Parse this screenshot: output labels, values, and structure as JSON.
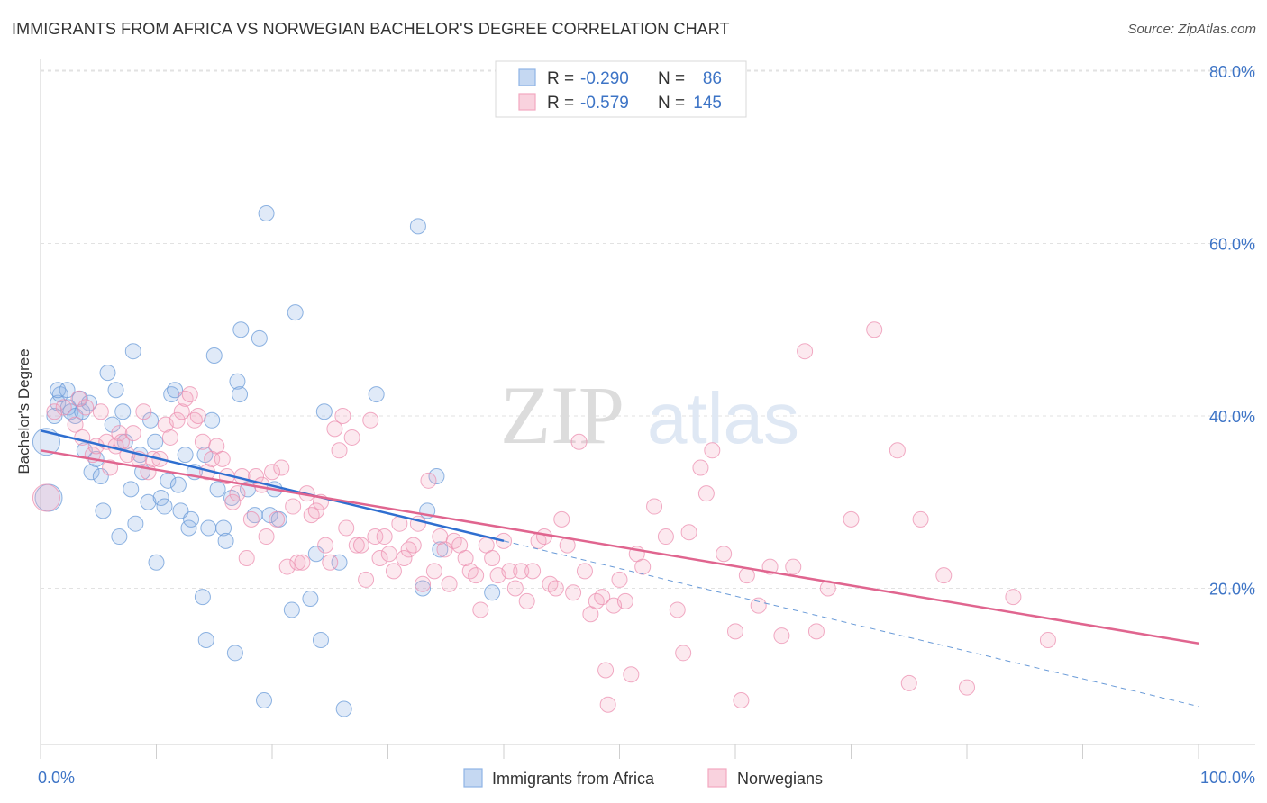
{
  "title": "IMMIGRANTS FROM AFRICA VS NORWEGIAN BACHELOR'S DEGREE CORRELATION CHART",
  "source": "Source: ZipAtlas.com",
  "watermark": {
    "zip": "ZIP",
    "atlas": "atlas"
  },
  "legend_box": [
    {
      "r_label": "R =",
      "r_value": "-0.290",
      "n_label": "N =",
      "n_value": "86",
      "color": "#8fb4e6"
    },
    {
      "r_label": "R =",
      "r_value": "-0.579",
      "n_label": "N =",
      "n_value": "145",
      "color": "#f2a8c0"
    }
  ],
  "chart_data": {
    "type": "scatter",
    "title": "IMMIGRANTS FROM AFRICA VS NORWEGIAN BACHELOR'S DEGREE CORRELATION CHART",
    "xlabel": "",
    "ylabel": "Bachelor's Degree",
    "xlim": [
      0,
      100
    ],
    "ylim": [
      0,
      80
    ],
    "x_tick_labels": [
      "0.0%",
      "100.0%"
    ],
    "y_ticks": [
      20,
      40,
      60,
      80
    ],
    "y_tick_labels": [
      "20.0%",
      "40.0%",
      "60.0%",
      "80.0%"
    ],
    "grid": true,
    "legend_position": "bottom",
    "series": [
      {
        "name": "Immigrants from Africa",
        "color": "#6a9bd8",
        "r": -0.29,
        "n": 86,
        "trend": {
          "x0": 0,
          "y0": 38.3,
          "x1": 40,
          "y1": 25.5,
          "dash_to_x": 100,
          "dash_to_y": 6.3
        },
        "points": [
          [
            0.5,
            37
          ],
          [
            0.7,
            30.5
          ],
          [
            1.2,
            40
          ],
          [
            1.5,
            41.5
          ],
          [
            1.7,
            42.5
          ],
          [
            1.5,
            43
          ],
          [
            2.4,
            41
          ],
          [
            2.6,
            40.5
          ],
          [
            2.3,
            43
          ],
          [
            3.0,
            40
          ],
          [
            3.4,
            42
          ],
          [
            3.6,
            40.5
          ],
          [
            3.8,
            36
          ],
          [
            4.2,
            41.5
          ],
          [
            4.4,
            33.5
          ],
          [
            4.8,
            35
          ],
          [
            5.2,
            33
          ],
          [
            5.4,
            29
          ],
          [
            5.8,
            45
          ],
          [
            6.2,
            39
          ],
          [
            6.5,
            43
          ],
          [
            6.8,
            26
          ],
          [
            7.1,
            40.5
          ],
          [
            7.3,
            37
          ],
          [
            7.8,
            31.5
          ],
          [
            8.0,
            47.5
          ],
          [
            8.2,
            27.5
          ],
          [
            8.6,
            35.5
          ],
          [
            8.8,
            33.5
          ],
          [
            9.3,
            30
          ],
          [
            9.5,
            39.5
          ],
          [
            9.9,
            37
          ],
          [
            10.0,
            23
          ],
          [
            10.4,
            30.5
          ],
          [
            10.7,
            29.5
          ],
          [
            11.0,
            32.5
          ],
          [
            11.3,
            42.5
          ],
          [
            11.6,
            43
          ],
          [
            11.9,
            32
          ],
          [
            12.1,
            29
          ],
          [
            12.5,
            35.5
          ],
          [
            12.8,
            27
          ],
          [
            13.0,
            28
          ],
          [
            13.3,
            33.5
          ],
          [
            14.0,
            19
          ],
          [
            14.2,
            35.5
          ],
          [
            14.5,
            27
          ],
          [
            14.3,
            14
          ],
          [
            14.8,
            39.5
          ],
          [
            15.0,
            47
          ],
          [
            15.3,
            31.5
          ],
          [
            15.8,
            27
          ],
          [
            16.0,
            25.5
          ],
          [
            16.5,
            30.5
          ],
          [
            16.8,
            12.5
          ],
          [
            17.0,
            44
          ],
          [
            17.2,
            42.5
          ],
          [
            17.3,
            50
          ],
          [
            17.9,
            31.5
          ],
          [
            18.5,
            28.5
          ],
          [
            18.9,
            49
          ],
          [
            19.3,
            7
          ],
          [
            19.5,
            63.5
          ],
          [
            19.8,
            28.5
          ],
          [
            20.2,
            31.5
          ],
          [
            20.6,
            28
          ],
          [
            21.7,
            17.5
          ],
          [
            22.0,
            52
          ],
          [
            23.3,
            18.8
          ],
          [
            23.8,
            24
          ],
          [
            24.2,
            14
          ],
          [
            24.5,
            40.5
          ],
          [
            25.8,
            23
          ],
          [
            26.2,
            6
          ],
          [
            29.0,
            42.5
          ],
          [
            32.6,
            62
          ],
          [
            33.0,
            20
          ],
          [
            33.4,
            29
          ],
          [
            34.2,
            33
          ],
          [
            34.5,
            24.5
          ],
          [
            39.0,
            19.5
          ]
        ]
      },
      {
        "name": "Norwegians",
        "color": "#ec8fb0",
        "r": -0.579,
        "n": 145,
        "trend": {
          "x0": 0,
          "y0": 36,
          "x1": 100,
          "y1": 13.6
        },
        "points": [
          [
            0.5,
            30.5
          ],
          [
            1.2,
            40.5
          ],
          [
            2.0,
            41
          ],
          [
            3.0,
            39
          ],
          [
            3.3,
            42
          ],
          [
            3.6,
            37.5
          ],
          [
            3.9,
            41
          ],
          [
            4.5,
            35.5
          ],
          [
            4.8,
            36.5
          ],
          [
            5.2,
            40.5
          ],
          [
            5.7,
            37
          ],
          [
            6.0,
            34
          ],
          [
            6.5,
            36.5
          ],
          [
            6.8,
            38
          ],
          [
            7.0,
            37
          ],
          [
            7.5,
            35.5
          ],
          [
            8.0,
            38
          ],
          [
            8.5,
            35
          ],
          [
            8.9,
            40.5
          ],
          [
            9.3,
            33.5
          ],
          [
            9.7,
            35
          ],
          [
            10.3,
            35
          ],
          [
            10.8,
            39
          ],
          [
            11.2,
            37.5
          ],
          [
            11.8,
            39.5
          ],
          [
            12.2,
            40.5
          ],
          [
            12.5,
            42
          ],
          [
            12.9,
            42.5
          ],
          [
            13.3,
            39.5
          ],
          [
            13.6,
            40
          ],
          [
            14.0,
            37
          ],
          [
            14.4,
            33.5
          ],
          [
            14.8,
            35
          ],
          [
            15.2,
            36.5
          ],
          [
            15.7,
            35
          ],
          [
            16.1,
            33
          ],
          [
            16.6,
            30
          ],
          [
            17.0,
            31
          ],
          [
            17.4,
            33
          ],
          [
            17.8,
            23.5
          ],
          [
            18.2,
            28
          ],
          [
            18.6,
            33
          ],
          [
            19.1,
            32
          ],
          [
            19.5,
            26
          ],
          [
            20.0,
            33.5
          ],
          [
            20.4,
            28
          ],
          [
            20.8,
            34
          ],
          [
            21.3,
            22.5
          ],
          [
            21.8,
            29.5
          ],
          [
            22.2,
            23
          ],
          [
            22.6,
            23
          ],
          [
            23.0,
            31
          ],
          [
            23.4,
            28.5
          ],
          [
            23.8,
            29
          ],
          [
            24.2,
            30
          ],
          [
            24.6,
            25
          ],
          [
            25.0,
            23
          ],
          [
            25.4,
            38.5
          ],
          [
            25.8,
            36
          ],
          [
            26.1,
            40
          ],
          [
            26.4,
            27
          ],
          [
            26.9,
            37.5
          ],
          [
            27.3,
            25
          ],
          [
            27.7,
            25
          ],
          [
            28.1,
            21
          ],
          [
            28.5,
            39.5
          ],
          [
            28.9,
            26
          ],
          [
            29.3,
            23.5
          ],
          [
            29.7,
            26
          ],
          [
            30.1,
            24
          ],
          [
            30.5,
            22
          ],
          [
            31.0,
            27.5
          ],
          [
            31.4,
            23.5
          ],
          [
            31.8,
            24.5
          ],
          [
            32.2,
            25
          ],
          [
            32.6,
            27.5
          ],
          [
            33.0,
            20.5
          ],
          [
            33.5,
            32.5
          ],
          [
            34.0,
            22
          ],
          [
            34.5,
            26
          ],
          [
            34.9,
            24.5
          ],
          [
            35.3,
            20.5
          ],
          [
            35.7,
            25.5
          ],
          [
            36.2,
            25
          ],
          [
            36.7,
            23.5
          ],
          [
            37.1,
            22
          ],
          [
            37.6,
            21.5
          ],
          [
            38.0,
            17.5
          ],
          [
            38.5,
            25
          ],
          [
            39.0,
            23.5
          ],
          [
            39.5,
            21.5
          ],
          [
            40.0,
            25.5
          ],
          [
            40.5,
            22
          ],
          [
            41.0,
            20
          ],
          [
            41.5,
            22
          ],
          [
            42.0,
            18.5
          ],
          [
            42.5,
            22
          ],
          [
            43.0,
            25.5
          ],
          [
            43.5,
            26
          ],
          [
            44.0,
            20.5
          ],
          [
            44.5,
            20
          ],
          [
            45.0,
            28
          ],
          [
            45.5,
            25
          ],
          [
            46.0,
            19.5
          ],
          [
            46.5,
            37
          ],
          [
            47.0,
            22
          ],
          [
            47.5,
            17
          ],
          [
            48.0,
            18.5
          ],
          [
            48.5,
            19
          ],
          [
            49.0,
            6.5
          ],
          [
            49.5,
            18
          ],
          [
            50.0,
            21
          ],
          [
            50.5,
            18.5
          ],
          [
            51.0,
            10
          ],
          [
            51.5,
            24
          ],
          [
            52.0,
            22.5
          ],
          [
            53.0,
            29.5
          ],
          [
            54.0,
            26
          ],
          [
            55.0,
            17.5
          ],
          [
            56.0,
            26.5
          ],
          [
            57.0,
            34
          ],
          [
            58.0,
            36
          ],
          [
            59.0,
            24
          ],
          [
            60.0,
            15
          ],
          [
            61.0,
            21.5
          ],
          [
            62.0,
            18
          ],
          [
            63.0,
            22.5
          ],
          [
            64.0,
            14.5
          ],
          [
            65.0,
            22.5
          ],
          [
            66.0,
            47.5
          ],
          [
            67.0,
            15
          ],
          [
            68.0,
            20
          ],
          [
            70.0,
            28
          ],
          [
            72.0,
            50
          ],
          [
            74.0,
            36
          ],
          [
            76.0,
            28
          ],
          [
            78.0,
            21.5
          ],
          [
            80.0,
            8.5
          ],
          [
            84.0,
            19
          ],
          [
            87.0,
            14
          ],
          [
            55.5,
            12.5
          ],
          [
            57.5,
            31
          ],
          [
            48.8,
            10.5
          ],
          [
            60.5,
            7
          ],
          [
            75.0,
            9
          ]
        ]
      }
    ]
  }
}
